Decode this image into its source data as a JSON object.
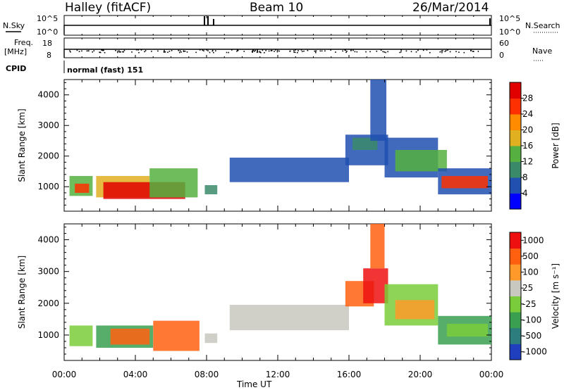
{
  "header": {
    "title": "Halley (fitACF)",
    "beam": "Beam 10",
    "date": "26/Mar/2014",
    "cpid_label": "CPID",
    "cpid_value": "normal (fast) 151"
  },
  "panels": {
    "nsky_label": "N.Sky",
    "nsky_ticks": [
      "10^5",
      "10^0"
    ],
    "nsearch_label": "N.Search",
    "nsearch_ticks": [
      "10^5",
      "10^0"
    ],
    "freq_label_1": "Freq.",
    "freq_label_2": "[MHz]",
    "freq_ticks": [
      "18",
      "8"
    ],
    "nave_label": "Nave",
    "nave_ticks": [
      "60",
      "0"
    ]
  },
  "chart_data": [
    {
      "type": "heatmap",
      "name": "power",
      "ylabel": "Slant Range [km]",
      "xlabel": "Time UT",
      "xticks": [
        "00:00",
        "04:00",
        "08:00",
        "12:00",
        "16:00",
        "20:00",
        "00:00"
      ],
      "yticks": [
        "1000",
        "2000",
        "3000",
        "4000"
      ],
      "ylim": [
        200,
        4500
      ],
      "colorbar_label": "Power [dB]",
      "colorbar_ticks": [
        "4",
        "8",
        "12",
        "16",
        "20",
        "24",
        "28"
      ],
      "colorbar_colors": [
        "#0000ff",
        "#2050b0",
        "#3a8a6a",
        "#55b040",
        "#e0b020",
        "#ff8c00",
        "#ff3000",
        "#e00000"
      ],
      "regions": [
        {
          "t0": 0.3,
          "t1": 1.6,
          "r0": 700,
          "r1": 1350,
          "level": 3
        },
        {
          "t0": 0.6,
          "t1": 1.4,
          "r0": 800,
          "r1": 1100,
          "level": 6
        },
        {
          "t0": 1.8,
          "t1": 4.8,
          "r0": 650,
          "r1": 1350,
          "level": 4
        },
        {
          "t0": 2.2,
          "t1": 6.8,
          "r0": 600,
          "r1": 1150,
          "level": 7
        },
        {
          "t0": 4.8,
          "t1": 7.5,
          "r0": 650,
          "r1": 1600,
          "level": 3
        },
        {
          "t0": 7.9,
          "t1": 8.6,
          "r0": 750,
          "r1": 1050,
          "level": 2
        },
        {
          "t0": 9.3,
          "t1": 16.0,
          "r0": 1150,
          "r1": 1950,
          "level": 1
        },
        {
          "t0": 15.8,
          "t1": 18.2,
          "r0": 1700,
          "r1": 2700,
          "level": 1
        },
        {
          "t0": 16.2,
          "t1": 17.6,
          "r0": 2200,
          "r1": 2600,
          "level": 2
        },
        {
          "t0": 17.2,
          "t1": 18.1,
          "r0": 2500,
          "r1": 4500,
          "level": 1
        },
        {
          "t0": 18.0,
          "t1": 21.0,
          "r0": 1300,
          "r1": 2600,
          "level": 1
        },
        {
          "t0": 18.6,
          "t1": 21.5,
          "r0": 1500,
          "r1": 2200,
          "level": 3
        },
        {
          "t0": 21.0,
          "t1": 24.0,
          "r0": 750,
          "r1": 1600,
          "level": 1
        },
        {
          "t0": 21.2,
          "t1": 23.8,
          "r0": 950,
          "r1": 1350,
          "level": 6
        }
      ]
    },
    {
      "type": "heatmap",
      "name": "velocity",
      "ylabel": "Slant Range [km]",
      "xlabel": "Time UT",
      "xticks": [
        "00:00",
        "04:00",
        "08:00",
        "12:00",
        "16:00",
        "20:00",
        "00:00"
      ],
      "yticks": [
        "1000",
        "2000",
        "3000",
        "4000"
      ],
      "ylim": [
        200,
        4500
      ],
      "colorbar_label": "Velocity [m s⁻¹]",
      "colorbar_ticks": [
        "1000",
        "500",
        "100",
        "25",
        "-25",
        "-100",
        "-500",
        "-1000"
      ],
      "colorbar_colors": [
        "#1f3fbf",
        "#2e7d7d",
        "#3aa050",
        "#7acc3a",
        "#c8c8c0",
        "#ff9a2a",
        "#ff6010",
        "#ee1010"
      ],
      "regions": [
        {
          "t0": 0.3,
          "t1": 1.6,
          "r0": 650,
          "r1": 1300,
          "level": 3
        },
        {
          "t0": 1.8,
          "t1": 5.0,
          "r0": 600,
          "r1": 1300,
          "level": 2
        },
        {
          "t0": 2.6,
          "t1": 4.8,
          "r0": 700,
          "r1": 1200,
          "level": 6
        },
        {
          "t0": 5.0,
          "t1": 7.6,
          "r0": 500,
          "r1": 1450,
          "level": 6
        },
        {
          "t0": 7.9,
          "t1": 8.6,
          "r0": 750,
          "r1": 1050,
          "level": 4
        },
        {
          "t0": 9.3,
          "t1": 16.0,
          "r0": 1150,
          "r1": 1950,
          "level": 4
        },
        {
          "t0": 15.8,
          "t1": 17.4,
          "r0": 1900,
          "r1": 2700,
          "level": 6
        },
        {
          "t0": 16.8,
          "t1": 18.2,
          "r0": 2000,
          "r1": 3100,
          "level": 7
        },
        {
          "t0": 17.2,
          "t1": 18.0,
          "r0": 3100,
          "r1": 4500,
          "level": 6
        },
        {
          "t0": 18.0,
          "t1": 21.0,
          "r0": 1300,
          "r1": 2600,
          "level": 3
        },
        {
          "t0": 18.6,
          "t1": 20.8,
          "r0": 1500,
          "r1": 2100,
          "level": 5
        },
        {
          "t0": 21.0,
          "t1": 24.0,
          "r0": 700,
          "r1": 1600,
          "level": 2
        },
        {
          "t0": 21.5,
          "t1": 23.8,
          "r0": 950,
          "r1": 1350,
          "level": 3
        }
      ]
    }
  ]
}
